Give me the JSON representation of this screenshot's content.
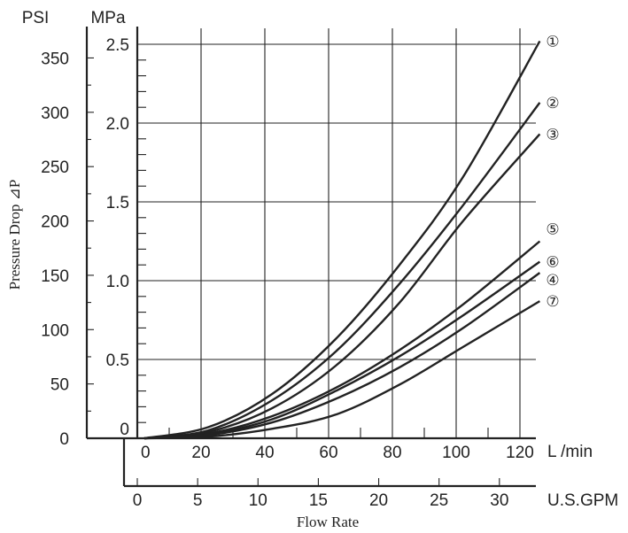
{
  "chart_data": {
    "type": "line",
    "xlabel": "Flow Rate",
    "ylabel": "Pressure Drop ⊿P",
    "x_axis_lpm": {
      "unit": "L /min",
      "ticks": [
        "0",
        "20",
        "40",
        "60",
        "80",
        "100",
        "120"
      ],
      "range": [
        0,
        125
      ]
    },
    "x_axis_gpm": {
      "unit": "U.S.GPM",
      "ticks": [
        "0",
        "5",
        "10",
        "15",
        "20",
        "25",
        "30"
      ],
      "range": [
        0,
        32.5
      ]
    },
    "y_axis_psi": {
      "unit": "PSI",
      "ticks": [
        "0",
        "50",
        "100",
        "150",
        "200",
        "250",
        "300",
        "350"
      ],
      "range": [
        0,
        365
      ]
    },
    "y_axis_mpa": {
      "unit": "MPa",
      "ticks": [
        "0",
        "0.5",
        "1.0",
        "1.5",
        "2.0",
        "2.5"
      ],
      "range": [
        0,
        2.6
      ]
    },
    "grid": true,
    "series": [
      {
        "name": "①",
        "x": [
          0,
          20,
          40,
          60,
          80,
          100,
          124
        ],
        "y": [
          0,
          0.07,
          0.28,
          0.63,
          1.1,
          1.66,
          2.52
        ]
      },
      {
        "name": "②",
        "x": [
          0,
          20,
          40,
          60,
          80,
          100,
          124
        ],
        "y": [
          0,
          0.05,
          0.24,
          0.55,
          0.98,
          1.48,
          2.13
        ]
      },
      {
        "name": "③",
        "x": [
          0,
          20,
          40,
          60,
          80,
          100,
          124
        ],
        "y": [
          0,
          0.04,
          0.19,
          0.46,
          0.86,
          1.38,
          1.93
        ]
      },
      {
        "name": "⑤",
        "x": [
          0,
          20,
          40,
          60,
          80,
          100,
          124
        ],
        "y": [
          0,
          0.03,
          0.14,
          0.32,
          0.56,
          0.85,
          1.25
        ]
      },
      {
        "name": "⑥",
        "x": [
          0,
          20,
          40,
          60,
          80,
          100,
          124
        ],
        "y": [
          0,
          0.025,
          0.12,
          0.3,
          0.52,
          0.78,
          1.12
        ]
      },
      {
        "name": "④",
        "x": [
          0,
          20,
          40,
          60,
          80,
          100,
          124
        ],
        "y": [
          0,
          0.02,
          0.1,
          0.25,
          0.45,
          0.7,
          1.05
        ]
      },
      {
        "name": "⑦",
        "x": [
          0,
          20,
          40,
          60,
          80,
          100,
          124
        ],
        "y": [
          0,
          0.01,
          0.06,
          0.15,
          0.34,
          0.58,
          0.87
        ]
      }
    ]
  }
}
